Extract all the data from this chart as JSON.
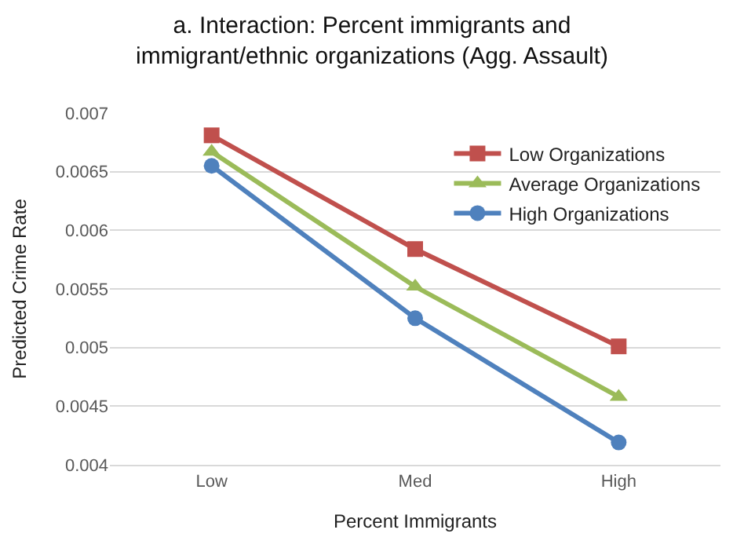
{
  "chart_data": {
    "type": "line",
    "title": "a. Interaction: Percent immigrants and immigrant/ethnic organizations (Agg. Assault)",
    "xlabel": "Percent Immigrants",
    "ylabel": "Predicted Crime Rate",
    "categories": [
      "Low",
      "Med",
      "High"
    ],
    "series": [
      {
        "name": "Low Organizations",
        "color": "#c0504d",
        "marker": "square",
        "values": [
          0.00681,
          0.00584,
          0.00501
        ]
      },
      {
        "name": "Average Organizations",
        "color": "#9bbb59",
        "marker": "triangle",
        "values": [
          0.00667,
          0.00552,
          0.00458
        ]
      },
      {
        "name": "High Organizations",
        "color": "#4f81bd",
        "marker": "circle",
        "values": [
          0.00655,
          0.00525,
          0.00419
        ]
      }
    ],
    "ylim": [
      0.004,
      0.007
    ],
    "yticks": [
      0.004,
      0.0045,
      0.005,
      0.0055,
      0.006,
      0.0065,
      0.007
    ],
    "grid": "y",
    "legend": "top right",
    "line_style": "solid"
  }
}
